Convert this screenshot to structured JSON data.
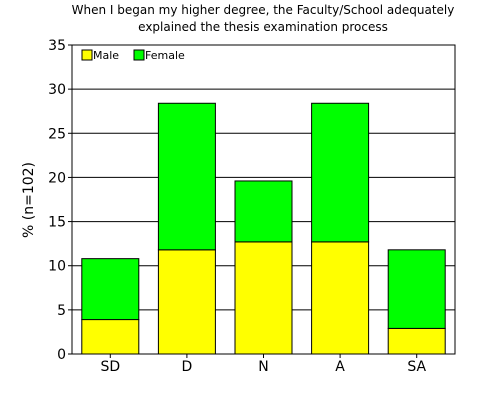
{
  "chart_data": {
    "type": "bar",
    "stacked": true,
    "title_lines": [
      "When I began my higher degree, the Faculty/School adequately",
      "explained the thesis examination process"
    ],
    "xlabel": "",
    "ylabel": "% (n=102)",
    "categories": [
      "SD",
      "D",
      "N",
      "A",
      "SA"
    ],
    "series": [
      {
        "name": "Male",
        "color": "#ffff00",
        "values": [
          3.9,
          11.8,
          12.7,
          12.7,
          2.9
        ]
      },
      {
        "name": "Female",
        "color": "#00ff00",
        "values": [
          6.9,
          16.6,
          6.9,
          15.7,
          8.9
        ]
      }
    ],
    "ylim": [
      0,
      35
    ],
    "yticks": [
      0,
      5,
      10,
      15,
      20,
      25,
      30,
      35
    ],
    "grid": true,
    "legend_position": "top-left"
  }
}
